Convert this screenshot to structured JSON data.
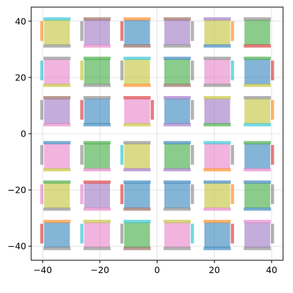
{
  "chart_data": {
    "type": "scatter",
    "title": "",
    "xlabel": "",
    "ylabel": "",
    "xlim": [
      -44,
      44
    ],
    "ylim": [
      -45,
      45
    ],
    "grid": true,
    "x_ticks": [
      -40,
      -20,
      0,
      20,
      40
    ],
    "y_ticks": [
      -40,
      -20,
      0,
      20,
      40
    ],
    "x_tick_labels": [
      "−40",
      "−20",
      "0",
      "20",
      "40"
    ],
    "y_tick_labels": [
      "−40",
      "−20",
      "0",
      "20",
      "40"
    ],
    "cell_half_size": 4.5,
    "palette": {
      "blue": "#1f77b4",
      "orange": "#ff7f0e",
      "green": "#2ca02c",
      "red": "#d62728",
      "purple": "#9467bd",
      "brown": "#8c564b",
      "pink": "#e377c2",
      "gray": "#7f7f7f",
      "olive": "#bcbd22",
      "cyan": "#17becf"
    },
    "cells": [
      {
        "x": -35,
        "y": 36,
        "fill": "olive",
        "top": "cyan",
        "bottom": "gray",
        "left": "orange",
        "right": ""
      },
      {
        "x": -21,
        "y": 36,
        "fill": "purple",
        "top": "brown",
        "bottom": "pink",
        "left": "gray",
        "right": ""
      },
      {
        "x": -7,
        "y": 36,
        "fill": "blue",
        "top": "orange",
        "bottom": "brown",
        "left": "red",
        "right": ""
      },
      {
        "x": 7,
        "y": 36,
        "fill": "purple",
        "top": "brown",
        "bottom": "gray",
        "left": "",
        "right": "gray"
      },
      {
        "x": 21,
        "y": 36,
        "fill": "olive",
        "top": "purple",
        "bottom": "blue",
        "left": "",
        "right": "orange"
      },
      {
        "x": 35,
        "y": 36,
        "fill": "green",
        "top": "gray",
        "bottom": "red",
        "left": "",
        "right": ""
      },
      {
        "x": -35,
        "y": 22,
        "fill": "pink",
        "top": "gray",
        "bottom": "olive",
        "left": "cyan",
        "right": ""
      },
      {
        "x": -21,
        "y": 22,
        "fill": "green",
        "top": "green",
        "bottom": "gray",
        "left": "olive",
        "right": ""
      },
      {
        "x": -7,
        "y": 22,
        "fill": "olive",
        "top": "cyan",
        "bottom": "orange",
        "left": "gray",
        "right": ""
      },
      {
        "x": 7,
        "y": 22,
        "fill": "green",
        "top": "blue",
        "bottom": "brown",
        "left": "",
        "right": "gray"
      },
      {
        "x": 21,
        "y": 22,
        "fill": "pink",
        "top": "gray",
        "bottom": "gray",
        "left": "",
        "right": "cyan"
      },
      {
        "x": 35,
        "y": 22,
        "fill": "blue",
        "top": "green",
        "bottom": "olive",
        "left": "",
        "right": "red"
      },
      {
        "x": -35,
        "y": 8,
        "fill": "purple",
        "top": "brown",
        "bottom": "pink",
        "left": "gray",
        "right": ""
      },
      {
        "x": -21,
        "y": 8,
        "fill": "blue",
        "top": "gray",
        "bottom": "blue",
        "left": "red",
        "right": ""
      },
      {
        "x": -7,
        "y": 8,
        "fill": "pink",
        "top": "red",
        "bottom": "olive",
        "left": "",
        "right": "red"
      },
      {
        "x": 7,
        "y": 8,
        "fill": "blue",
        "top": "purple",
        "bottom": "purple",
        "left": "",
        "right": "gray"
      },
      {
        "x": 21,
        "y": 8,
        "fill": "purple",
        "top": "olive",
        "bottom": "green",
        "left": "",
        "right": ""
      },
      {
        "x": 35,
        "y": 8,
        "fill": "olive",
        "top": "gray",
        "bottom": "cyan",
        "left": "",
        "right": "orange"
      },
      {
        "x": -35,
        "y": -8,
        "fill": "pink",
        "top": "blue",
        "bottom": "olive",
        "left": "gray",
        "right": ""
      },
      {
        "x": -21,
        "y": -8,
        "fill": "green",
        "top": "green",
        "bottom": "pink",
        "left": "gray",
        "right": ""
      },
      {
        "x": -7,
        "y": -8,
        "fill": "olive",
        "top": "gray",
        "bottom": "purple",
        "left": "cyan",
        "right": ""
      },
      {
        "x": 7,
        "y": -8,
        "fill": "green",
        "top": "blue",
        "bottom": "purple",
        "left": "",
        "right": "gray"
      },
      {
        "x": 21,
        "y": -8,
        "fill": "pink",
        "top": "cyan",
        "bottom": "orange",
        "left": "",
        "right": "gray"
      },
      {
        "x": 35,
        "y": -8,
        "fill": "blue",
        "top": "green",
        "bottom": "pink",
        "left": "",
        "right": "red"
      },
      {
        "x": -35,
        "y": -22,
        "fill": "olive",
        "top": "green",
        "bottom": "gray",
        "left": "pink",
        "right": ""
      },
      {
        "x": -21,
        "y": -22,
        "fill": "purple",
        "top": "red",
        "bottom": "pink",
        "left": "pink",
        "right": ""
      },
      {
        "x": -7,
        "y": -22,
        "fill": "blue",
        "top": "blue",
        "bottom": "brown",
        "left": "red",
        "right": ""
      },
      {
        "x": 7,
        "y": -22,
        "fill": "blue",
        "top": "blue",
        "bottom": "gray",
        "left": "",
        "right": "gray"
      },
      {
        "x": 21,
        "y": -22,
        "fill": "olive",
        "top": "blue",
        "bottom": "pink",
        "left": "",
        "right": "orange"
      },
      {
        "x": 35,
        "y": -22,
        "fill": "green",
        "top": "blue",
        "bottom": "blue",
        "left": "",
        "right": "gray"
      },
      {
        "x": -35,
        "y": -36,
        "fill": "blue",
        "top": "orange",
        "bottom": "gray",
        "left": "red",
        "right": ""
      },
      {
        "x": -21,
        "y": -36,
        "fill": "pink",
        "top": "olive",
        "bottom": "gray",
        "left": "cyan",
        "right": ""
      },
      {
        "x": -7,
        "y": -36,
        "fill": "green",
        "top": "cyan",
        "bottom": "brown",
        "left": "gray",
        "right": ""
      },
      {
        "x": 7,
        "y": -36,
        "fill": "pink",
        "top": "olive",
        "bottom": "gray",
        "left": "",
        "right": "cyan"
      },
      {
        "x": 21,
        "y": -36,
        "fill": "blue",
        "top": "orange",
        "bottom": "blue",
        "left": "",
        "right": "red"
      },
      {
        "x": 35,
        "y": -36,
        "fill": "purple",
        "top": "pink",
        "bottom": "gray",
        "left": "",
        "right": "gray"
      }
    ]
  }
}
